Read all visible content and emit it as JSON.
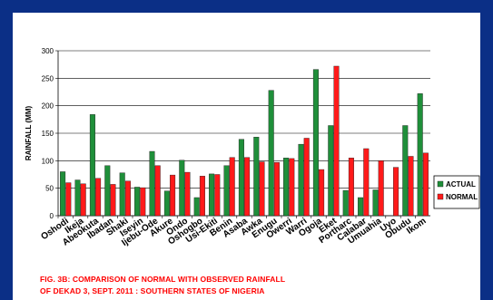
{
  "colors": {
    "frame": "#0b2f86",
    "actual": "#1f8f3a",
    "normal": "#ff1a1a",
    "title": "#ff0000"
  },
  "chart_data": {
    "type": "bar",
    "title_lines": [
      "FIG. 3B: COMPARISON OF NORMAL  WITH OBSERVED RAINFALL",
      "OF  DEKAD 3, SEPT. 2011 : SOUTHERN STATES OF NIGERIA"
    ],
    "ylabel": "RAINFALL (MM)",
    "xlabel": "",
    "ylim": [
      0,
      300
    ],
    "yticks": [
      0,
      50,
      100,
      150,
      200,
      250,
      300
    ],
    "grid": true,
    "legend_position": "right",
    "categories": [
      "Oshodi",
      "Ikeja",
      "Abeokuta",
      "Ibadan",
      "Shaki",
      "Iseyin",
      "Ijebu-Ode",
      "Akure",
      "Ondo",
      "Oshogbo",
      "Usi-Ekiti",
      "Benin",
      "Asaba",
      "Awka",
      "Enugu",
      "Owerri",
      "Warri",
      "Ogoja",
      "Eket",
      "Portharc",
      "Calabar",
      "Umuahia",
      "Uyo",
      "Obudu",
      "Ikom"
    ],
    "series": [
      {
        "name": "ACTUAL",
        "values": [
          80,
          65,
          184,
          91,
          78,
          52,
          117,
          45,
          101,
          33,
          76,
          91,
          139,
          143,
          228,
          105,
          130,
          266,
          164,
          46,
          33,
          47,
          0,
          164,
          222
        ]
      },
      {
        "name": "NORMAL",
        "values": [
          60,
          58,
          68,
          57,
          63,
          51,
          91,
          74,
          79,
          72,
          75,
          106,
          106,
          98,
          97,
          104,
          141,
          84,
          272,
          105,
          122,
          100,
          88,
          108,
          114
        ]
      }
    ]
  }
}
